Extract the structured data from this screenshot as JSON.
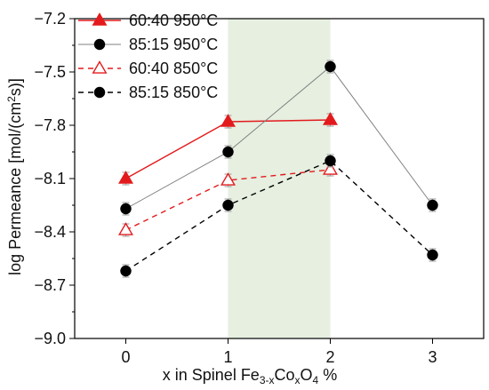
{
  "chart_data": {
    "type": "line",
    "title": "",
    "xlabel": "x in Spinel Fe3-xCoxO4 %",
    "xlabel_parts": {
      "a": "x in Spinel Fe",
      "b": "3-x",
      "c": "Co",
      "d": "x",
      "e": "O",
      "f": "4",
      "g": " %"
    },
    "ylabel": "log Permeance [mol/(cm2s)]",
    "ylabel_parts": {
      "a": "log Permeance [mol/(cm",
      "b": "2",
      "c": "s)]"
    },
    "x": [
      0,
      1,
      2,
      3
    ],
    "xlim": [
      -0.5,
      3.5
    ],
    "ylim": [
      -9.0,
      -7.2
    ],
    "yticks": [
      -9.0,
      -8.7,
      -8.4,
      -8.1,
      -7.8,
      -7.5,
      -7.2
    ],
    "xticks": [
      0,
      1,
      2,
      3
    ],
    "xtick_labels": [
      "0",
      "1",
      "2",
      "3"
    ],
    "ytick_labels": [
      "−9.0",
      "−8.7",
      "−8.4",
      "−8.1",
      "−7.8",
      "−7.5",
      "−7.2"
    ],
    "shaded_region": {
      "x_from": 1,
      "x_to": 2,
      "color": "#e6efe0"
    },
    "legend_position": "top-left",
    "series": [
      {
        "name": "60:40 950°C",
        "x": [
          0,
          1,
          2
        ],
        "values": [
          -8.1,
          -7.78,
          -7.77
        ],
        "color": "#e31a1c",
        "marker": "triangle-filled",
        "line_style": "solid"
      },
      {
        "name": "85:15 950°C",
        "x": [
          0,
          1,
          2,
          3
        ],
        "values": [
          -8.27,
          -7.95,
          -7.47,
          -8.25
        ],
        "color": "#808080",
        "marker": "circle-filled",
        "marker_color": "#000000",
        "line_style": "solid"
      },
      {
        "name": "60:40 850°C",
        "x": [
          0,
          1,
          2
        ],
        "values": [
          -8.39,
          -8.11,
          -8.05
        ],
        "color": "#e31a1c",
        "marker": "triangle-open",
        "line_style": "dashed"
      },
      {
        "name": "85:15 850°C",
        "x": [
          0,
          1,
          2,
          3
        ],
        "values": [
          -8.62,
          -8.25,
          -8.0,
          -8.53
        ],
        "color": "#000000",
        "marker": "circle-filled",
        "marker_color": "#000000",
        "line_style": "dashed"
      }
    ],
    "error_bar_color": "#999999"
  }
}
